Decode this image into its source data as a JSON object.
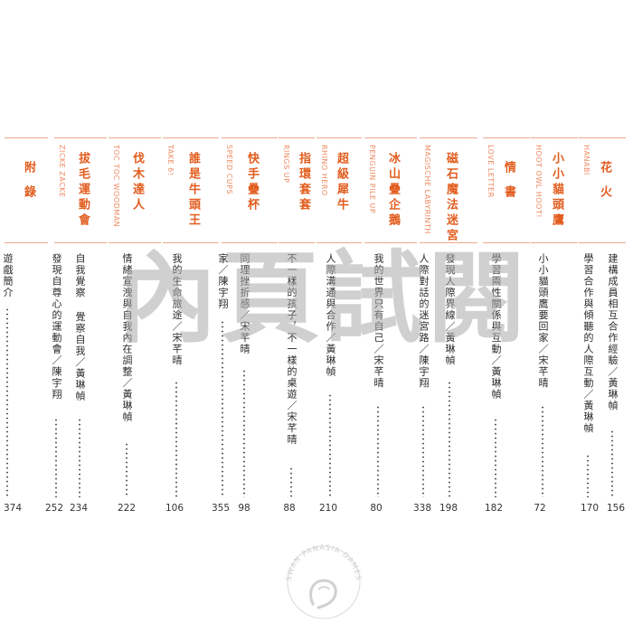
{
  "accent_color": "#e25d1f",
  "watermark": "內頁試閱",
  "publisher_logo": "SWAN PANASIA GAMES",
  "chapters": [
    {
      "title": "花火",
      "en": "HANABI",
      "entries": [
        {
          "text": "建構成員相互合作經驗／黃琳幀",
          "page": "156"
        },
        {
          "text": "學習合作與傾聽的人際互動／黃琳幀",
          "page": "170"
        }
      ]
    },
    {
      "title": "小小貓頭鷹",
      "en": "HOOT OWL HOOT!",
      "entries": [
        {
          "text": "小小貓頭鷹要回家／宋芊晴",
          "page": "72"
        }
      ]
    },
    {
      "title": "情書",
      "en": "LOVE LETTER",
      "entries": [
        {
          "text": "學習兩性關係與互動／黃琳幀",
          "page": "182"
        }
      ]
    },
    {
      "title": "磁石魔法迷宮",
      "en": "MAGISCHE LABYRINTH",
      "entries": [
        {
          "text": "發現人際界線／黃琳幀",
          "page": "198"
        },
        {
          "text": "人際對話的迷宮路／陳宇翔",
          "page": "338"
        }
      ]
    },
    {
      "title": "冰山疊企鵝",
      "en": "PENGUIN PILE UP",
      "entries": [
        {
          "text": "我的世界只有自己／宋芊晴",
          "page": "80"
        }
      ]
    },
    {
      "title": "超級犀牛",
      "en": "RHINO HERO",
      "entries": [
        {
          "text": "人際溝通與合作／黃琳幀",
          "page": "210"
        }
      ]
    },
    {
      "title": "指環套套",
      "en": "RINGS UP",
      "entries": [
        {
          "text": "不一樣的孩子，不一樣的桌遊／宋芊晴",
          "page": "88"
        }
      ]
    },
    {
      "title": "快手疊杯",
      "en": "SPEED CUPS",
      "entries": [
        {
          "text": "同理挫折感／宋芊晴",
          "page": "98"
        },
        {
          "text": "家／陳宇翔",
          "page": "355"
        }
      ]
    },
    {
      "title": "誰是牛頭王",
      "en": "TAKE 6!",
      "entries": [
        {
          "text": "我的生命旅途／宋芊晴",
          "page": "106"
        }
      ]
    },
    {
      "title": "伐木達人",
      "en": "TOC TOC WOODMAN",
      "entries": [
        {
          "text": "情緒宣洩與自我內在調整／黃琳幀",
          "page": "222"
        }
      ]
    },
    {
      "title": "拔毛運動會",
      "en": "ZICKE ZACKE",
      "entries": [
        {
          "text": "自我覺察 覺察自我／黃琳幀",
          "page": "234"
        },
        {
          "text": "發現自尊心的運動會／陳宇翔",
          "page": "252"
        }
      ]
    },
    {
      "title": "附錄",
      "en": "",
      "entries": [
        {
          "text": "遊戲簡介",
          "page": "374"
        }
      ]
    }
  ]
}
